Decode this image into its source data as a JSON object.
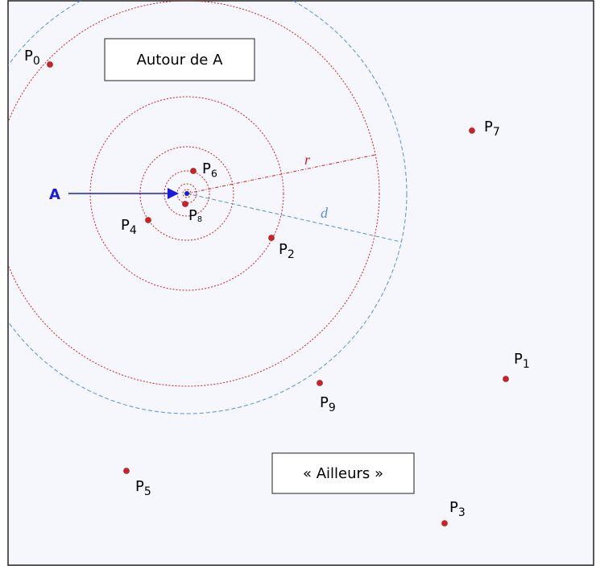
{
  "regions": {
    "near": "Autour de A",
    "far": "« Ailleurs »"
  },
  "center": "A",
  "radii": {
    "r": "r",
    "d": "d"
  },
  "points": [
    {
      "label": "P",
      "sub": "0"
    },
    {
      "label": "P",
      "sub": "1"
    },
    {
      "label": "P",
      "sub": "2"
    },
    {
      "label": "P",
      "sub": "3"
    },
    {
      "label": "P",
      "sub": "4"
    },
    {
      "label": "P",
      "sub": "5"
    },
    {
      "label": "P",
      "sub": "6"
    },
    {
      "label": "P",
      "sub": "7"
    },
    {
      "label": "P",
      "sub": "8"
    },
    {
      "label": "P",
      "sub": "9"
    }
  ]
}
